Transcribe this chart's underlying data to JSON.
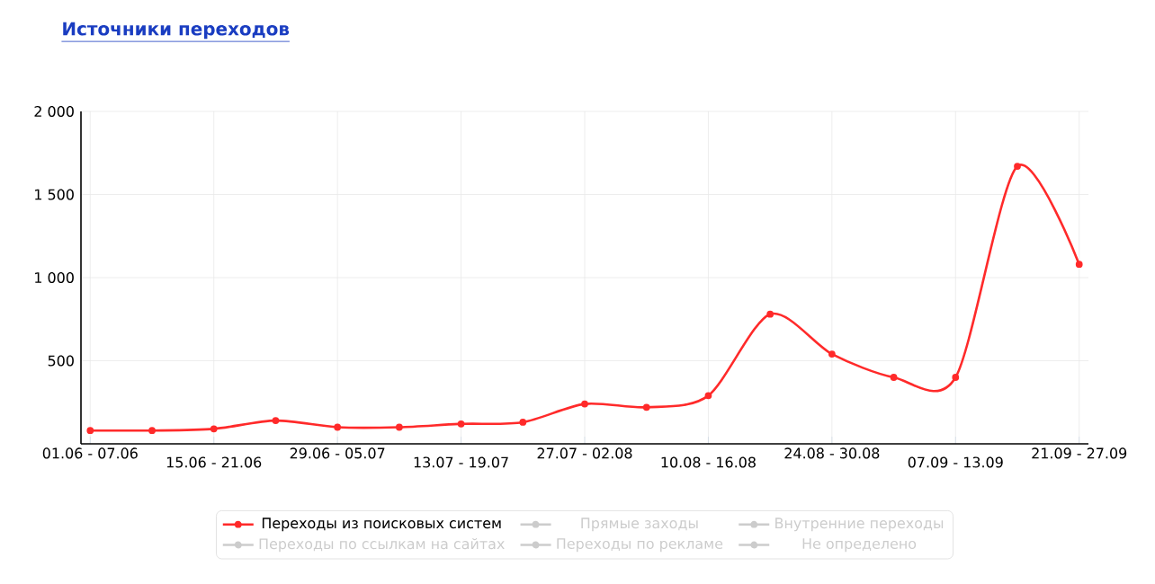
{
  "chart_data": {
    "type": "line",
    "title": "Источники переходов",
    "categories": [
      "01.06 - 07.06",
      null,
      "15.06 - 21.06",
      null,
      "29.06 - 05.07",
      null,
      "13.07 - 19.07",
      null,
      "27.07 - 02.08",
      null,
      "10.08 - 16.08",
      null,
      "24.08 - 30.08",
      null,
      "07.09 - 13.09",
      null,
      "21.09 - 27.09"
    ],
    "series": [
      {
        "name": "Переходы из поисковых систем",
        "color": "#ff2a2a",
        "values": [
          80,
          80,
          90,
          140,
          100,
          100,
          120,
          130,
          240,
          220,
          290,
          780,
          540,
          400,
          400,
          1670,
          1080
        ]
      },
      {
        "name": "Прямые заходы",
        "color": "#cccccc",
        "values": [
          null,
          null,
          null,
          null,
          null,
          null,
          null,
          null,
          null,
          null,
          null,
          null,
          null,
          null,
          null,
          null,
          null
        ]
      },
      {
        "name": "Внутренние переходы",
        "color": "#cccccc",
        "values": [
          null,
          null,
          null,
          null,
          null,
          null,
          null,
          null,
          null,
          null,
          null,
          null,
          null,
          null,
          null,
          null,
          null
        ]
      },
      {
        "name": "Переходы по ссылкам на сайтах",
        "color": "#cccccc",
        "values": [
          null,
          null,
          null,
          null,
          null,
          null,
          null,
          null,
          null,
          null,
          null,
          null,
          null,
          null,
          null,
          null,
          null
        ]
      },
      {
        "name": "Переходы по рекламе",
        "color": "#cccccc",
        "values": [
          null,
          null,
          null,
          null,
          null,
          null,
          null,
          null,
          null,
          null,
          null,
          null,
          null,
          null,
          null,
          null,
          null
        ]
      },
      {
        "name": "Не определено",
        "color": "#cccccc",
        "values": [
          null,
          null,
          null,
          null,
          null,
          null,
          null,
          null,
          null,
          null,
          null,
          null,
          null,
          null,
          null,
          null,
          null
        ]
      }
    ],
    "ylim": [
      0,
      2000
    ],
    "yticks": [
      {
        "value": 500,
        "label": "500"
      },
      {
        "value": 1000,
        "label": "1 000"
      },
      {
        "value": 1500,
        "label": "1 500"
      },
      {
        "value": 2000,
        "label": "2 000"
      }
    ],
    "grid": true,
    "legend": "bottom",
    "marker": "circle",
    "line_style": "solid"
  }
}
